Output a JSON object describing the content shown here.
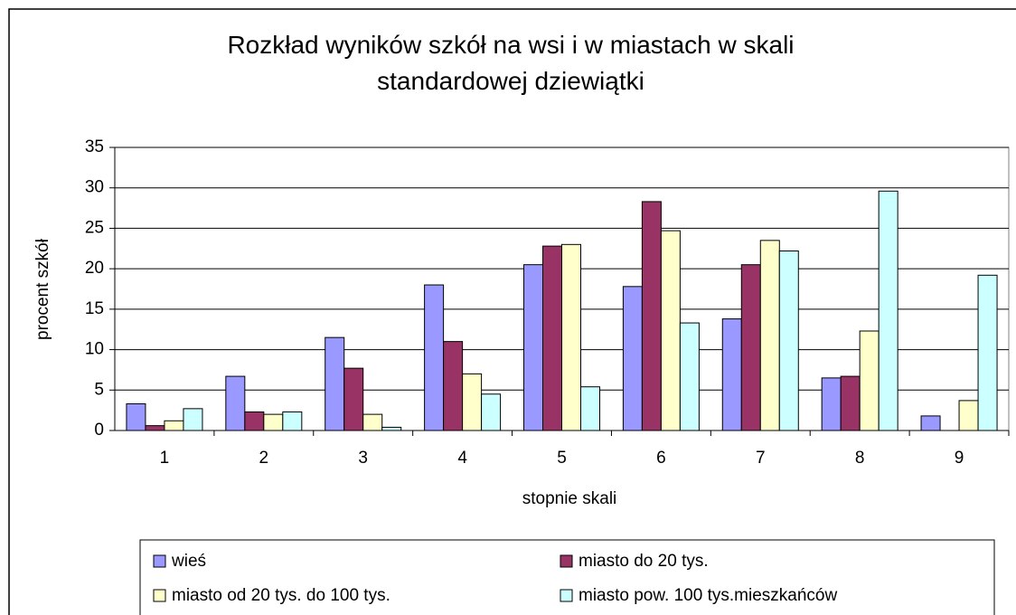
{
  "chart_data": {
    "type": "bar",
    "title": "Rozkład wyników szkół na wsi i w miastach w skali standardowej dziewiątki",
    "x_label": "stopnie skali",
    "y_label": "procent szkół",
    "categories": [
      "1",
      "2",
      "3",
      "4",
      "5",
      "6",
      "7",
      "8",
      "9"
    ],
    "series": [
      {
        "name": "wieś",
        "color": "#9999ff",
        "values": [
          3.3,
          6.7,
          11.5,
          18,
          20.5,
          17.8,
          13.8,
          6.5,
          1.8
        ]
      },
      {
        "name": "miasto do 20 tys.",
        "color": "#993366",
        "values": [
          0.6,
          2.3,
          7.7,
          11,
          22.8,
          28.3,
          20.5,
          6.7,
          0
        ]
      },
      {
        "name": "miasto od 20 tys. do 100 tys.",
        "color": "#ffffcc",
        "values": [
          1.2,
          2,
          2,
          7,
          23,
          24.7,
          23.5,
          12.3,
          3.7
        ]
      },
      {
        "name": "miasto pow. 100 tys.mieszkańców",
        "color": "#ccffff",
        "values": [
          2.7,
          2.3,
          0.4,
          4.5,
          5.4,
          13.3,
          22.2,
          29.6,
          19.2
        ]
      }
    ],
    "ylim": [
      0,
      35
    ],
    "yticks": [
      0,
      5,
      10,
      15,
      20,
      25,
      30,
      35
    ],
    "grid": true,
    "legend": "bottom"
  }
}
